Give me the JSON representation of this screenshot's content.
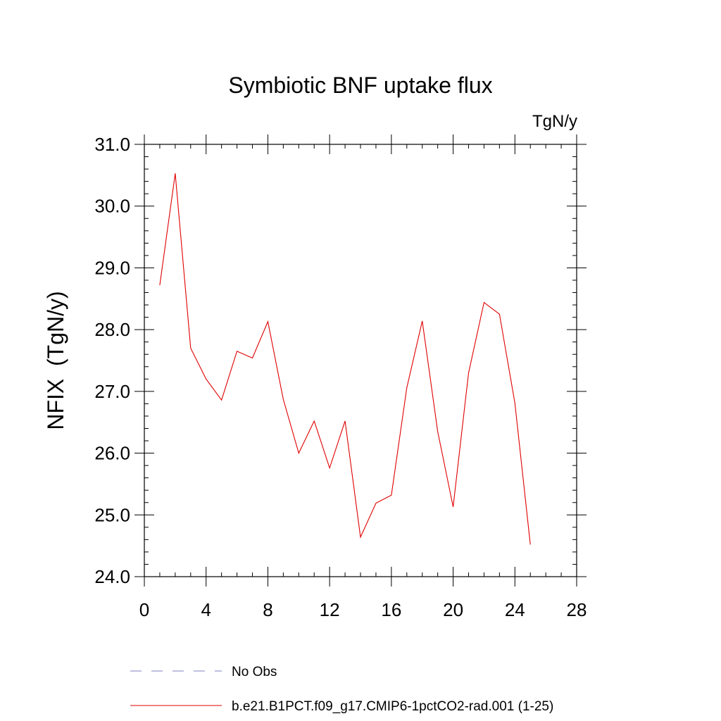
{
  "chart_data": {
    "type": "line",
    "title": "Symbiotic BNF uptake flux",
    "units": "TgN/y",
    "ylabel": "NFIX  (TgN/y)",
    "xlabel": "",
    "xlim": [
      0,
      28
    ],
    "ylim": [
      24.0,
      31.0
    ],
    "xticks": [
      "0",
      "4",
      "8",
      "12",
      "16",
      "20",
      "24",
      "28"
    ],
    "yticks": [
      "24.0",
      "25.0",
      "26.0",
      "27.0",
      "28.0",
      "29.0",
      "30.0",
      "31.0"
    ],
    "grid": false,
    "legend_position": "bottom",
    "series": [
      {
        "name": "No Obs",
        "color": "#8080c0",
        "style": "dashed",
        "x": [],
        "y": []
      },
      {
        "name": "b.e21.B1PCT.f09_g17.CMIP6-1pctCO2-rad.001 (1-25)",
        "color": "#e00000",
        "style": "solid",
        "x": [
          1,
          2,
          3,
          4,
          5,
          6,
          7,
          8,
          9,
          10,
          11,
          12,
          13,
          14,
          15,
          16,
          17,
          18,
          19,
          20,
          21,
          22,
          23,
          24,
          25
        ],
        "y": [
          28.72,
          30.53,
          27.7,
          27.2,
          26.86,
          27.65,
          27.54,
          28.13,
          26.87,
          26.0,
          26.52,
          25.76,
          26.52,
          24.64,
          25.19,
          25.32,
          27.06,
          28.14,
          26.35,
          25.13,
          27.3,
          28.44,
          28.25,
          26.81,
          24.52
        ]
      }
    ]
  }
}
